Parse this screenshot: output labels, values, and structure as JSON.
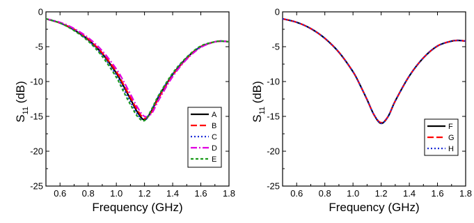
{
  "chart_data": [
    {
      "type": "line",
      "xlabel": "Frequency (GHz)",
      "ylabel_main": "S",
      "ylabel_sub": "11",
      "ylabel_unit": " (dB)",
      "xlim": [
        0.5,
        1.8
      ],
      "ylim": [
        -25,
        0
      ],
      "xticks": [
        "0.6",
        "0.8",
        "1.0",
        "1.2",
        "1.4",
        "1.6",
        "1.8"
      ],
      "yticks": [
        "0",
        "-5",
        "-10",
        "-15",
        "-20",
        "-25"
      ],
      "grid": false,
      "legend_position": "bottom-right",
      "series": [
        {
          "name": "A",
          "color": "#000000",
          "dash": "solid",
          "x": [
            0.5,
            0.6,
            0.7,
            0.8,
            0.9,
            1.0,
            1.05,
            1.1,
            1.15,
            1.2,
            1.25,
            1.3,
            1.4,
            1.5,
            1.6,
            1.7,
            1.75,
            1.8
          ],
          "y": [
            -1.0,
            -1.6,
            -2.6,
            -4.0,
            -6.0,
            -8.8,
            -10.6,
            -12.5,
            -14.4,
            -15.5,
            -14.2,
            -12.2,
            -9.0,
            -6.6,
            -5.0,
            -4.3,
            -4.2,
            -4.3
          ]
        },
        {
          "name": "B",
          "color": "#ff0000",
          "dash": "dash",
          "x": [
            0.5,
            0.6,
            0.7,
            0.8,
            0.9,
            1.0,
            1.05,
            1.1,
            1.15,
            1.2,
            1.25,
            1.3,
            1.4,
            1.5,
            1.6,
            1.7,
            1.75,
            1.8
          ],
          "y": [
            -1.0,
            -1.6,
            -2.5,
            -3.9,
            -5.9,
            -8.6,
            -10.4,
            -12.3,
            -14.1,
            -15.3,
            -14.4,
            -12.4,
            -9.1,
            -6.7,
            -5.0,
            -4.3,
            -4.2,
            -4.3
          ]
        },
        {
          "name": "C",
          "color": "#1a2bd6",
          "dash": "dot",
          "x": [
            0.5,
            0.6,
            0.7,
            0.8,
            0.9,
            1.0,
            1.05,
            1.1,
            1.15,
            1.2,
            1.25,
            1.3,
            1.4,
            1.5,
            1.6,
            1.7,
            1.75,
            1.8
          ],
          "y": [
            -1.0,
            -1.6,
            -2.6,
            -4.1,
            -6.2,
            -9.1,
            -11.0,
            -12.9,
            -14.7,
            -15.6,
            -14.1,
            -12.1,
            -8.9,
            -6.6,
            -5.0,
            -4.3,
            -4.2,
            -4.3
          ]
        },
        {
          "name": "D",
          "color": "#e000e0",
          "dash": "dashdot",
          "x": [
            0.5,
            0.6,
            0.7,
            0.8,
            0.9,
            1.0,
            1.05,
            1.1,
            1.15,
            1.2,
            1.25,
            1.3,
            1.4,
            1.5,
            1.6,
            1.7,
            1.75,
            1.8
          ],
          "y": [
            -1.0,
            -1.5,
            -2.4,
            -3.7,
            -5.6,
            -8.2,
            -9.9,
            -11.8,
            -13.7,
            -15.0,
            -14.6,
            -12.7,
            -9.3,
            -6.8,
            -5.1,
            -4.3,
            -4.2,
            -4.3
          ]
        },
        {
          "name": "E",
          "color": "#1a9a1a",
          "dash": "shortdash",
          "x": [
            0.5,
            0.6,
            0.7,
            0.8,
            0.9,
            1.0,
            1.05,
            1.1,
            1.15,
            1.2,
            1.25,
            1.3,
            1.4,
            1.5,
            1.6,
            1.7,
            1.75,
            1.8
          ],
          "y": [
            -1.0,
            -1.6,
            -2.7,
            -4.2,
            -6.4,
            -9.4,
            -11.4,
            -13.3,
            -15.0,
            -15.6,
            -14.0,
            -12.0,
            -8.8,
            -6.5,
            -4.9,
            -4.3,
            -4.2,
            -4.3
          ]
        }
      ]
    },
    {
      "type": "line",
      "xlabel": "Frequency (GHz)",
      "ylabel_main": "S",
      "ylabel_sub": "11",
      "ylabel_unit": " (dB)",
      "xlim": [
        0.5,
        1.8
      ],
      "ylim": [
        -25,
        0
      ],
      "xticks": [
        "0.6",
        "0.8",
        "1.0",
        "1.2",
        "1.4",
        "1.6",
        "1.8"
      ],
      "yticks": [
        "0",
        "-5",
        "-10",
        "-15",
        "-20",
        "-25"
      ],
      "grid": false,
      "legend_position": "bottom-right",
      "series": [
        {
          "name": "F",
          "color": "#000000",
          "dash": "solid",
          "x": [
            0.5,
            0.6,
            0.7,
            0.8,
            0.9,
            1.0,
            1.05,
            1.1,
            1.15,
            1.2,
            1.25,
            1.3,
            1.4,
            1.5,
            1.6,
            1.7,
            1.75,
            1.8
          ],
          "y": [
            -1.0,
            -1.5,
            -2.4,
            -3.8,
            -5.8,
            -8.6,
            -10.5,
            -12.6,
            -14.8,
            -16.0,
            -15.0,
            -12.8,
            -9.2,
            -6.6,
            -4.9,
            -4.2,
            -4.1,
            -4.2
          ]
        },
        {
          "name": "G",
          "color": "#ff0000",
          "dash": "dash",
          "x": [
            0.5,
            0.6,
            0.7,
            0.8,
            0.9,
            1.0,
            1.05,
            1.1,
            1.15,
            1.2,
            1.25,
            1.3,
            1.4,
            1.5,
            1.6,
            1.7,
            1.75,
            1.8
          ],
          "y": [
            -1.0,
            -1.5,
            -2.4,
            -3.8,
            -5.8,
            -8.6,
            -10.5,
            -12.6,
            -14.8,
            -15.9,
            -15.0,
            -12.8,
            -9.2,
            -6.6,
            -4.9,
            -4.2,
            -4.1,
            -4.2
          ]
        },
        {
          "name": "H",
          "color": "#1a2bd6",
          "dash": "dot",
          "x": [
            0.5,
            0.6,
            0.7,
            0.8,
            0.9,
            1.0,
            1.05,
            1.1,
            1.15,
            1.2,
            1.25,
            1.3,
            1.4,
            1.5,
            1.6,
            1.7,
            1.75,
            1.8
          ],
          "y": [
            -1.0,
            -1.5,
            -2.4,
            -3.8,
            -5.8,
            -8.6,
            -10.5,
            -12.6,
            -14.8,
            -16.0,
            -15.0,
            -12.8,
            -9.2,
            -6.6,
            -4.9,
            -4.2,
            -4.1,
            -4.2
          ]
        }
      ]
    }
  ]
}
